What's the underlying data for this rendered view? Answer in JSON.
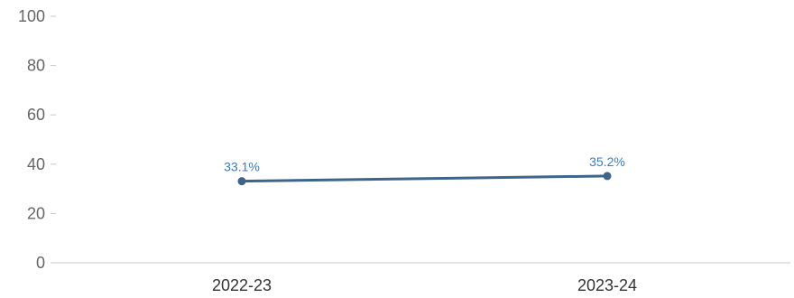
{
  "chart_data": {
    "type": "line",
    "title": "",
    "xlabel": "",
    "ylabel": "",
    "categories": [
      "2022-23",
      "2023-24"
    ],
    "series": [
      {
        "values": [
          33.1,
          35.2
        ],
        "labels": [
          "33.1%",
          "35.2%"
        ]
      }
    ],
    "ylim": [
      0,
      100
    ],
    "yticks": [
      "0",
      "20",
      "40",
      "60",
      "80",
      "100"
    ],
    "grid": false,
    "legend": "none",
    "colors": {
      "line": "#3f6489",
      "point": "#3f6489",
      "label": "#3b7bbf",
      "axis": "#c8c8c8"
    }
  }
}
